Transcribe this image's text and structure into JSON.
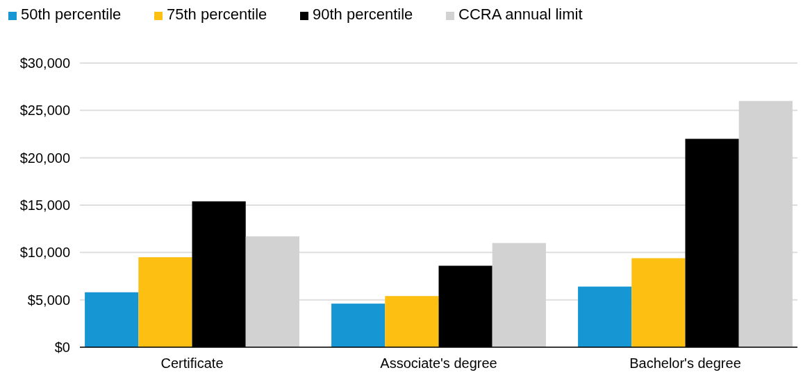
{
  "chart_data": {
    "type": "bar",
    "categories": [
      "Certificate",
      "Associate's degree",
      "Bachelor's degree"
    ],
    "series": [
      {
        "name": "50th percentile",
        "color": "#1696d2",
        "values": [
          5800,
          4600,
          6400
        ]
      },
      {
        "name": "75th percentile",
        "color": "#fdbf11",
        "values": [
          9500,
          5400,
          9400
        ]
      },
      {
        "name": "90th percentile",
        "color": "#000000",
        "values": [
          15400,
          8600,
          22000
        ]
      },
      {
        "name": "CCRA annual limit",
        "color": "#d2d2d2",
        "values": [
          11700,
          11000,
          26000
        ]
      }
    ],
    "ylim": [
      0,
      30000
    ],
    "yticks": [
      {
        "value": 0,
        "label": "$0"
      },
      {
        "value": 5000,
        "label": "$5,000"
      },
      {
        "value": 10000,
        "label": "$10,000"
      },
      {
        "value": 15000,
        "label": "$15,000"
      },
      {
        "value": 20000,
        "label": "$20,000"
      },
      {
        "value": 25000,
        "label": "$25,000"
      },
      {
        "value": 30000,
        "label": "$30,000"
      }
    ],
    "grid": "y",
    "legend": "top left"
  }
}
